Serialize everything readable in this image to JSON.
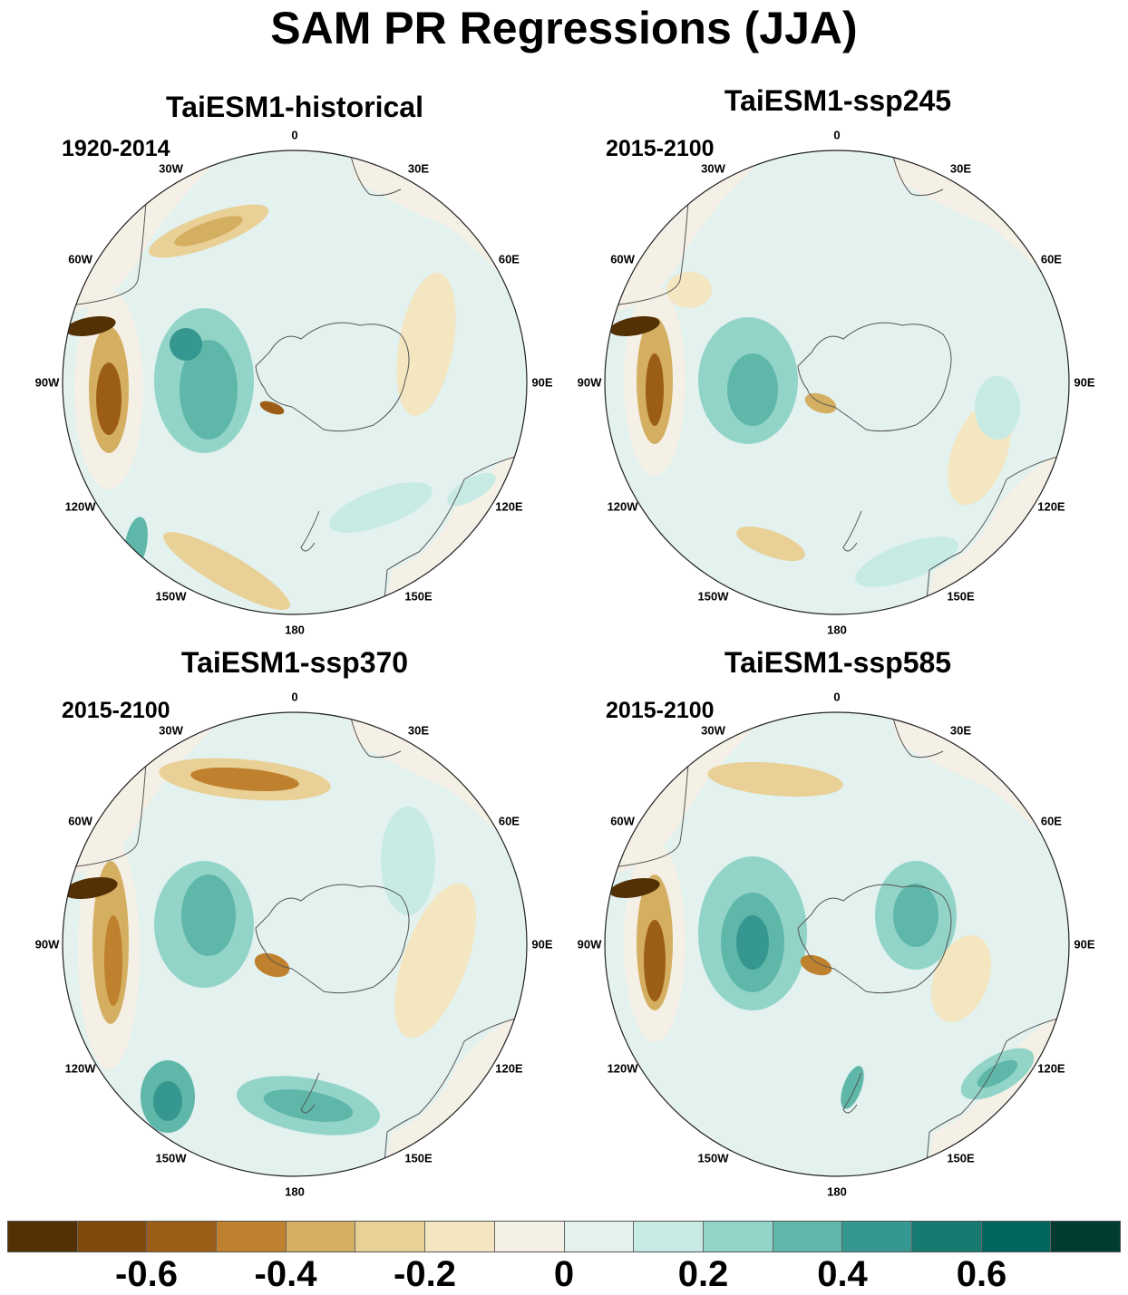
{
  "title": "SAM PR Regressions (JJA)",
  "panels": [
    {
      "title": "TaiESM1-historical",
      "period": "1920-2014"
    },
    {
      "title": "TaiESM1-ssp245",
      "period": "2015-2100"
    },
    {
      "title": "TaiESM1-ssp370",
      "period": "2015-2100"
    },
    {
      "title": "TaiESM1-ssp585",
      "period": "2015-2100"
    }
  ],
  "longitude_labels": [
    "0",
    "30E",
    "60E",
    "90E",
    "120E",
    "150E",
    "180",
    "150W",
    "120W",
    "90W",
    "60W",
    "30W"
  ],
  "colorbar": {
    "colors": [
      "#543005",
      "#7f4a0b",
      "#9c5e16",
      "#bf812d",
      "#d4af62",
      "#e8d097",
      "#f3e6c1",
      "#f5f0e6",
      "#e3f1ef",
      "#c7eae5",
      "#93d4c8",
      "#5fb7aa",
      "#35978f",
      "#177a70",
      "#01665e",
      "#003c30"
    ],
    "tick_labels": [
      "-0.6",
      "-0.4",
      "-0.2",
      "0",
      "0.2",
      "0.4",
      "0.6"
    ]
  },
  "colors": {
    "land": "#f5f0e6",
    "ocean": "#e3f1ef",
    "coast": "#555555"
  }
}
